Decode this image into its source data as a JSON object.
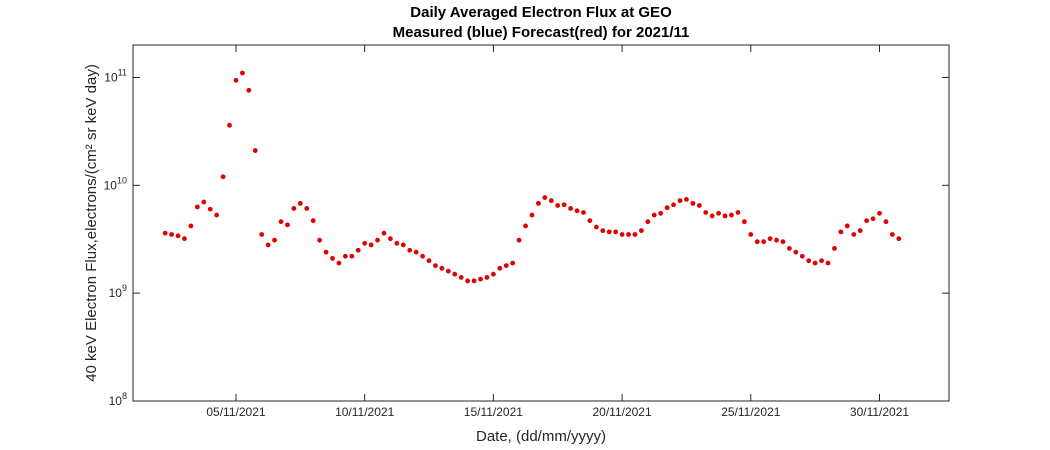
{
  "chart_data": {
    "type": "scatter",
    "title": "Daily Averaged Electron Flux at GEO",
    "subtitle": "Measured (blue) Forecast(red) for 2021/11",
    "x_label": "Date, (dd/mm/yyyy)",
    "y_label": "40 keV Electron Flux,electrons/(cm² sr keV day)",
    "log_y": true,
    "xlim": [
      1,
      32.7
    ],
    "xticks": [
      {
        "value": 5,
        "label": "05/11/2021"
      },
      {
        "value": 10,
        "label": "10/11/2021"
      },
      {
        "value": 15,
        "label": "15/11/2021"
      },
      {
        "value": 20,
        "label": "20/11/2021"
      },
      {
        "value": 25,
        "label": "25/11/2021"
      },
      {
        "value": 30,
        "label": "30/11/2021"
      }
    ],
    "ylim": [
      100000000,
      200000000000
    ],
    "yticks": [
      {
        "value": 100000000,
        "label": "10^8"
      },
      {
        "value": 1000000000,
        "label": "10^9"
      },
      {
        "value": 10000000000,
        "label": "10^10"
      },
      {
        "value": 100000000000,
        "label": "10^11"
      }
    ],
    "series": [
      {
        "color": "#e00000",
        "x": [
          2.25,
          2.5,
          2.75,
          3,
          3.25,
          3.5,
          3.75,
          4,
          4.25,
          4.5,
          4.75,
          5,
          5.25,
          5.5,
          5.75,
          6,
          6.25,
          6.5,
          6.75,
          7,
          7.25,
          7.5,
          7.75,
          8,
          8.25,
          8.5,
          8.75,
          9,
          9.25,
          9.5,
          9.75,
          10,
          10.25,
          10.5,
          10.75,
          11,
          11.25,
          11.5,
          11.75,
          12,
          12.25,
          12.5,
          12.75,
          13,
          13.25,
          13.5,
          13.75,
          14,
          14.25,
          14.5,
          14.75,
          15,
          15.25,
          15.5,
          15.75,
          16,
          16.25,
          16.5,
          16.75,
          17,
          17.25,
          17.5,
          17.75,
          18,
          18.25,
          18.5,
          18.75,
          19,
          19.25,
          19.5,
          19.75,
          20,
          20.25,
          20.5,
          20.75,
          21,
          21.25,
          21.5,
          21.75,
          22,
          22.25,
          22.5,
          22.75,
          23,
          23.25,
          23.5,
          23.75,
          24,
          24.25,
          24.5,
          24.75,
          25,
          25.25,
          25.5,
          25.75,
          26,
          26.25,
          26.5,
          26.75,
          27,
          27.25,
          27.5,
          27.75,
          28,
          28.25,
          28.5,
          28.75,
          29,
          29.25,
          29.5,
          29.75,
          30,
          30.25,
          30.5,
          30.75
        ],
        "values": [
          3600000000,
          3500000000,
          3400000000,
          3200000000,
          4200000000,
          6300000000,
          7000000000,
          6000000000,
          5300000000,
          12000000000,
          36000000000,
          94000000000,
          110000000000,
          76000000000,
          21000000000,
          3500000000,
          2800000000,
          3100000000,
          4600000000,
          4300000000,
          6100000000,
          6800000000,
          6100000000,
          4700000000,
          3100000000,
          2400000000,
          2100000000,
          1900000000,
          2200000000,
          2200000000,
          2500000000,
          2900000000,
          2800000000,
          3100000000,
          3600000000,
          3200000000,
          2900000000,
          2800000000,
          2500000000,
          2400000000,
          2200000000,
          2000000000,
          1800000000,
          1700000000,
          1600000000,
          1500000000,
          1400000000,
          1300000000,
          1300000000,
          1350000000,
          1400000000,
          1500000000,
          1700000000,
          1800000000,
          1900000000,
          3100000000,
          4200000000,
          5300000000,
          6800000000,
          7700000000,
          7200000000,
          6500000000,
          6600000000,
          6100000000,
          5800000000,
          5600000000,
          4700000000,
          4100000000,
          3800000000,
          3700000000,
          3700000000,
          3500000000,
          3500000000,
          3500000000,
          3800000000,
          4600000000,
          5300000000,
          5500000000,
          6200000000,
          6600000000,
          7200000000,
          7400000000,
          6800000000,
          6500000000,
          5600000000,
          5200000000,
          5500000000,
          5200000000,
          5300000000,
          5600000000,
          4600000000,
          3500000000,
          3000000000,
          3000000000,
          3200000000,
          3100000000,
          3000000000,
          2600000000,
          2400000000,
          2200000000,
          2000000000,
          1900000000,
          2000000000,
          1900000000,
          2600000000,
          3700000000,
          4200000000,
          3500000000,
          3800000000,
          4700000000,
          4900000000,
          5500000000,
          4600000000,
          3500000000,
          3200000000
        ]
      }
    ]
  }
}
